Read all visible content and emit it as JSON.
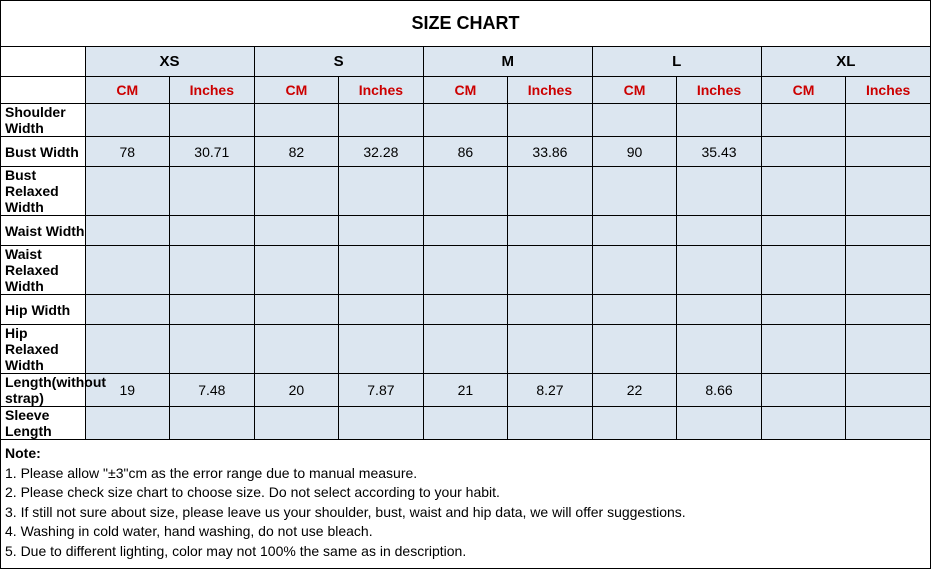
{
  "title": "SIZE CHART",
  "sizes": [
    "XS",
    "S",
    "M",
    "L",
    "XL"
  ],
  "units": [
    "CM",
    "Inches"
  ],
  "colors": {
    "header_bg": "#dce6f0",
    "unit_text": "#cc0000",
    "border": "#000000",
    "bg": "#ffffff"
  },
  "fonts": {
    "title_size": 18,
    "header_size": 15,
    "unit_size": 14,
    "body_size": 14
  },
  "measurements": [
    {
      "label": "Shoulder Width",
      "values": [
        "",
        "",
        "",
        "",
        "",
        "",
        "",
        "",
        "",
        ""
      ]
    },
    {
      "label": "Bust Width",
      "values": [
        "78",
        "30.71",
        "82",
        "32.28",
        "86",
        "33.86",
        "90",
        "35.43",
        "",
        ""
      ]
    },
    {
      "label": "Bust Relaxed Width",
      "values": [
        "",
        "",
        "",
        "",
        "",
        "",
        "",
        "",
        "",
        ""
      ]
    },
    {
      "label": "Waist Width",
      "values": [
        "",
        "",
        "",
        "",
        "",
        "",
        "",
        "",
        "",
        ""
      ]
    },
    {
      "label": "Waist Relaxed Width",
      "values": [
        "",
        "",
        "",
        "",
        "",
        "",
        "",
        "",
        "",
        ""
      ]
    },
    {
      "label": "Hip Width",
      "values": [
        "",
        "",
        "",
        "",
        "",
        "",
        "",
        "",
        "",
        ""
      ]
    },
    {
      "label": "Hip Relaxed Width",
      "values": [
        "",
        "",
        "",
        "",
        "",
        "",
        "",
        "",
        "",
        ""
      ]
    },
    {
      "label": "Length(without strap)",
      "values": [
        "19",
        "7.48",
        "20",
        "7.87",
        "21",
        "8.27",
        "22",
        "8.66",
        "",
        ""
      ]
    },
    {
      "label": "Sleeve Length",
      "values": [
        "",
        "",
        "",
        "",
        "",
        "",
        "",
        "",
        "",
        ""
      ]
    }
  ],
  "notes": {
    "title": "Note:",
    "lines": [
      "1. Please allow \"±3\"cm as the error range due to manual measure.",
      "2. Please check size chart to choose size. Do not select according to your habit.",
      "3. If still not sure about size, please leave us your shoulder, bust, waist and hip data, we will offer suggestions.",
      "4. Washing in cold water, hand washing, do not use bleach.",
      "5. Due to different lighting, color may not 100% the same as in description."
    ]
  }
}
